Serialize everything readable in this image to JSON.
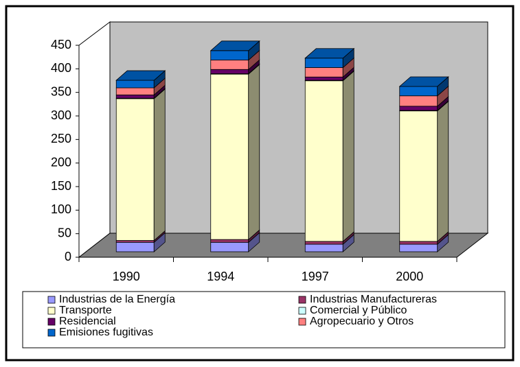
{
  "chart_data": {
    "type": "bar3d_stacked",
    "categories": [
      "1990",
      "1994",
      "1997",
      "2000"
    ],
    "series": [
      {
        "name": "Industrias de la Energía",
        "color": "#9999ff",
        "values": [
          20,
          20,
          16,
          16
        ]
      },
      {
        "name": "Industrias Manufactureras",
        "color": "#993366",
        "values": [
          4,
          6,
          6,
          6
        ]
      },
      {
        "name": "Transporte",
        "color": "#ffffcc",
        "values": [
          301,
          351,
          341,
          277
        ]
      },
      {
        "name": "Comercial y Público",
        "color": "#ccffff",
        "values": [
          1,
          1,
          1,
          1
        ]
      },
      {
        "name": "Residencial",
        "color": "#660066",
        "values": [
          7,
          9,
          7,
          9
        ]
      },
      {
        "name": "Agropecuario y Otros",
        "color": "#ff8080",
        "values": [
          15,
          20,
          20,
          22
        ]
      },
      {
        "name": "Emisiones fugitivas",
        "color": "#0066cc",
        "values": [
          16,
          20,
          20,
          20
        ]
      }
    ],
    "ylim": [
      0,
      450
    ],
    "yticks": [
      0,
      50,
      100,
      150,
      200,
      250,
      300,
      350,
      400,
      450
    ],
    "grid": false,
    "legend": "bottom"
  }
}
